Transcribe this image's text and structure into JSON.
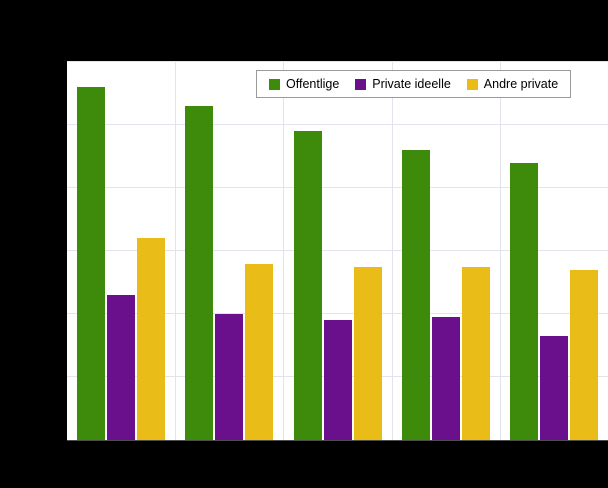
{
  "chart_data": {
    "type": "bar",
    "title": "",
    "xlabel": "",
    "ylabel": "",
    "categories": [
      "",
      "",
      "",
      "",
      ""
    ],
    "series": [
      {
        "name": "Offentlige",
        "color": "#3e8b0b",
        "values": [
          56,
          53,
          49,
          46,
          44
        ]
      },
      {
        "name": "Private ideelle",
        "color": "#6b108c",
        "values": [
          23,
          20,
          19,
          19.5,
          16.5
        ]
      },
      {
        "name": "Andre private",
        "color": "#e9bc17",
        "values": [
          32,
          28,
          27.5,
          27.5,
          27
        ]
      }
    ],
    "ylim": [
      0,
      60
    ],
    "y_gridline_step": 10,
    "grid": true,
    "legend_position": "top",
    "note": "Axis tick labels and title are not visible (obscured by black background bands)."
  },
  "colors": {
    "background": "#000000",
    "plot_background": "#ffffff",
    "gridline": "#e3e3ee"
  }
}
